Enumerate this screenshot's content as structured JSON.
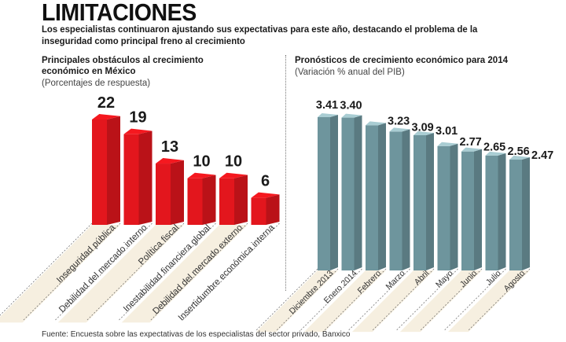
{
  "header": {
    "title": "LIMITACIONES",
    "subtitle": "Los especialistas continuaron ajustando sus expectativas para este año, destacando el problema de la inseguridad como principal freno al crecimiento"
  },
  "source": "Fuente: Encuesta sobre las expectativas de los especialistas del sector privado, Banxico",
  "colors": {
    "left_bar": "#e3161d",
    "right_bar": "#6e959d",
    "stripe": "#f3ead6"
  },
  "chart_data": [
    {
      "type": "bar",
      "title": "Principales obstáculos al crecimiento económico en México",
      "subtitle": "(Porcentajes de respuesta)",
      "xlabel": "",
      "ylabel": "",
      "categories": [
        "Inseguridad pública",
        "Debilidad del mercado interno",
        "Política fiscal",
        "Inestabilidad financiera global",
        "Debilidad del mercado externo",
        "Insertidumbre económica interna"
      ],
      "values": [
        22,
        19,
        13,
        10,
        10,
        6
      ],
      "data_labels": [
        "22",
        "19",
        "13",
        "10",
        "10",
        "6"
      ],
      "ylim": [
        0,
        22
      ],
      "grid": false,
      "legend": "none"
    },
    {
      "type": "bar",
      "title": "Pronósticos de crecimiento económico para 2014",
      "subtitle": "(Variación % anual del PIB)",
      "xlabel": "",
      "ylabel": "",
      "categories": [
        "Diciembre 2013",
        "Enero 2014",
        "Febrero",
        "Marzo",
        "Abril",
        "Mayo",
        "Junio",
        "Julio",
        "Agosto"
      ],
      "values": [
        3.41,
        3.4,
        3.23,
        3.09,
        3.01,
        2.77,
        2.65,
        2.56,
        2.47
      ],
      "data_labels": [
        "3.41",
        "3.40",
        "3.23",
        "3.09",
        "3.01",
        "2.77",
        "2.65",
        "2.56",
        "2.47"
      ],
      "grid": false,
      "legend": "none"
    }
  ]
}
